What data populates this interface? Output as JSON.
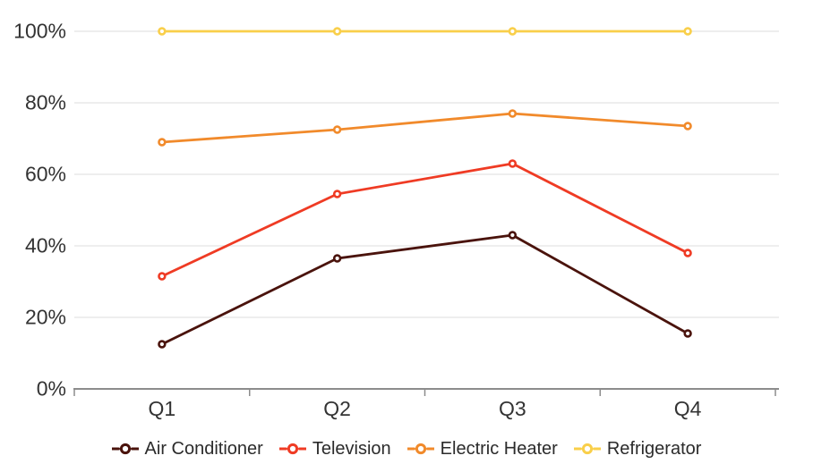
{
  "chart_data": {
    "type": "line",
    "categories": [
      "Q1",
      "Q2",
      "Q3",
      "Q4"
    ],
    "series": [
      {
        "name": "Air Conditioner",
        "color": "#4A130C",
        "values": [
          12.5,
          36.5,
          43,
          15.5
        ]
      },
      {
        "name": "Television",
        "color": "#EF3B24",
        "values": [
          31.5,
          54.5,
          63,
          38
        ]
      },
      {
        "name": "Electric Heater",
        "color": "#F18A2B",
        "values": [
          69,
          72.5,
          77,
          73.5
        ]
      },
      {
        "name": "Refrigerator",
        "color": "#F9CF4A",
        "values": [
          100,
          100,
          100,
          100
        ]
      }
    ],
    "title": "",
    "xlabel": "",
    "ylabel": "",
    "ylim": [
      0,
      100
    ],
    "yticks": [
      0,
      20,
      40,
      60,
      80,
      100
    ],
    "ytick_labels": [
      "0%",
      "20%",
      "40%",
      "60%",
      "80%",
      "100%"
    ],
    "grid": true,
    "legend_position": "bottom",
    "marker": "open-circle",
    "style": {
      "background_color": "#FFFFFF",
      "gridline_color": "#E8E8E8",
      "axis_line_color": "#8C8C8C",
      "axis_label_color": "#333333",
      "legend_text_color": "#2B2B2B"
    }
  }
}
